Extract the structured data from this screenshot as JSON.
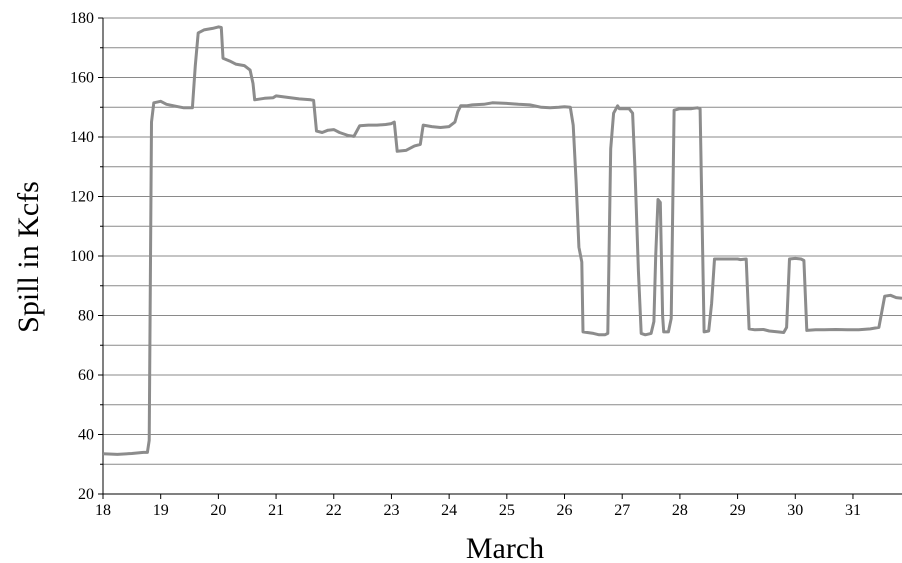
{
  "chart_data": {
    "type": "line",
    "title": "",
    "xlabel": "March",
    "ylabel": "Spill in Kcfs",
    "xlim": [
      18,
      31.85
    ],
    "ylim": [
      20,
      180
    ],
    "x_ticks": [
      18,
      19,
      20,
      21,
      22,
      23,
      24,
      25,
      26,
      27,
      28,
      29,
      30,
      31
    ],
    "y_ticks": [
      20,
      40,
      60,
      80,
      100,
      120,
      140,
      160,
      180
    ],
    "grid": "horizontal-major-and-minor",
    "legend": "none",
    "line_color": "#8c8c8c",
    "series": [
      {
        "points": [
          [
            18.0,
            33.5
          ],
          [
            18.25,
            33.3
          ],
          [
            18.5,
            33.6
          ],
          [
            18.7,
            34.0
          ],
          [
            18.77,
            34.0
          ],
          [
            18.8,
            38.0
          ],
          [
            18.84,
            145.0
          ],
          [
            18.88,
            151.5
          ],
          [
            19.0,
            152.0
          ],
          [
            19.1,
            151.0
          ],
          [
            19.3,
            150.2
          ],
          [
            19.4,
            149.8
          ],
          [
            19.55,
            149.8
          ],
          [
            19.6,
            164.0
          ],
          [
            19.65,
            175.0
          ],
          [
            19.75,
            176.0
          ],
          [
            19.9,
            176.5
          ],
          [
            20.0,
            177.0
          ],
          [
            20.05,
            176.8
          ],
          [
            20.08,
            166.5
          ],
          [
            20.2,
            165.5
          ],
          [
            20.3,
            164.5
          ],
          [
            20.45,
            164.0
          ],
          [
            20.55,
            162.5
          ],
          [
            20.6,
            158.0
          ],
          [
            20.63,
            152.5
          ],
          [
            20.8,
            153.0
          ],
          [
            20.95,
            153.2
          ],
          [
            21.0,
            153.8
          ],
          [
            21.2,
            153.3
          ],
          [
            21.4,
            152.8
          ],
          [
            21.6,
            152.5
          ],
          [
            21.65,
            152.3
          ],
          [
            21.7,
            142.0
          ],
          [
            21.8,
            141.5
          ],
          [
            21.9,
            142.3
          ],
          [
            22.0,
            142.5
          ],
          [
            22.1,
            141.5
          ],
          [
            22.25,
            140.5
          ],
          [
            22.35,
            140.2
          ],
          [
            22.45,
            143.8
          ],
          [
            22.6,
            144.0
          ],
          [
            22.75,
            144.0
          ],
          [
            22.9,
            144.2
          ],
          [
            23.0,
            144.5
          ],
          [
            23.05,
            145.0
          ],
          [
            23.1,
            135.2
          ],
          [
            23.25,
            135.5
          ],
          [
            23.4,
            137.0
          ],
          [
            23.5,
            137.5
          ],
          [
            23.55,
            144.0
          ],
          [
            23.7,
            143.5
          ],
          [
            23.85,
            143.2
          ],
          [
            24.0,
            143.5
          ],
          [
            24.1,
            145.0
          ],
          [
            24.15,
            148.5
          ],
          [
            24.2,
            150.5
          ],
          [
            24.3,
            150.5
          ],
          [
            24.4,
            150.8
          ],
          [
            24.6,
            151.0
          ],
          [
            24.75,
            151.5
          ],
          [
            25.0,
            151.3
          ],
          [
            25.2,
            151.0
          ],
          [
            25.4,
            150.8
          ],
          [
            25.6,
            150.0
          ],
          [
            25.75,
            149.8
          ],
          [
            25.9,
            150.0
          ],
          [
            26.0,
            150.2
          ],
          [
            26.1,
            150.0
          ],
          [
            26.15,
            144.0
          ],
          [
            26.2,
            125.0
          ],
          [
            26.25,
            103.0
          ],
          [
            26.3,
            98.0
          ],
          [
            26.32,
            74.5
          ],
          [
            26.5,
            74.0
          ],
          [
            26.6,
            73.5
          ],
          [
            26.7,
            73.5
          ],
          [
            26.75,
            74.0
          ],
          [
            26.8,
            136.0
          ],
          [
            26.85,
            148.0
          ],
          [
            26.92,
            150.5
          ],
          [
            26.95,
            149.5
          ],
          [
            27.05,
            149.5
          ],
          [
            27.12,
            149.5
          ],
          [
            27.18,
            148.0
          ],
          [
            27.22,
            130.0
          ],
          [
            27.28,
            95.0
          ],
          [
            27.33,
            74.0
          ],
          [
            27.4,
            73.5
          ],
          [
            27.5,
            74.0
          ],
          [
            27.55,
            78.0
          ],
          [
            27.58,
            100.0
          ],
          [
            27.62,
            119.0
          ],
          [
            27.66,
            118.0
          ],
          [
            27.7,
            80.0
          ],
          [
            27.72,
            74.5
          ],
          [
            27.8,
            74.5
          ],
          [
            27.85,
            79.0
          ],
          [
            27.9,
            149.0
          ],
          [
            28.0,
            149.5
          ],
          [
            28.1,
            149.5
          ],
          [
            28.2,
            149.5
          ],
          [
            28.3,
            149.8
          ],
          [
            28.35,
            149.5
          ],
          [
            28.42,
            74.5
          ],
          [
            28.5,
            74.8
          ],
          [
            28.55,
            84.0
          ],
          [
            28.6,
            99.0
          ],
          [
            28.8,
            99.0
          ],
          [
            29.0,
            99.0
          ],
          [
            29.05,
            98.8
          ],
          [
            29.15,
            99.0
          ],
          [
            29.2,
            75.5
          ],
          [
            29.3,
            75.2
          ],
          [
            29.45,
            75.3
          ],
          [
            29.55,
            74.8
          ],
          [
            29.7,
            74.5
          ],
          [
            29.8,
            74.3
          ],
          [
            29.85,
            76.0
          ],
          [
            29.9,
            99.0
          ],
          [
            30.0,
            99.2
          ],
          [
            30.1,
            99.0
          ],
          [
            30.15,
            98.5
          ],
          [
            30.2,
            75.0
          ],
          [
            30.35,
            75.2
          ],
          [
            30.5,
            75.2
          ],
          [
            30.7,
            75.3
          ],
          [
            30.9,
            75.2
          ],
          [
            31.1,
            75.2
          ],
          [
            31.3,
            75.5
          ],
          [
            31.45,
            76.0
          ],
          [
            31.55,
            86.5
          ],
          [
            31.65,
            86.8
          ],
          [
            31.75,
            86.0
          ],
          [
            31.85,
            85.8
          ]
        ]
      }
    ]
  }
}
